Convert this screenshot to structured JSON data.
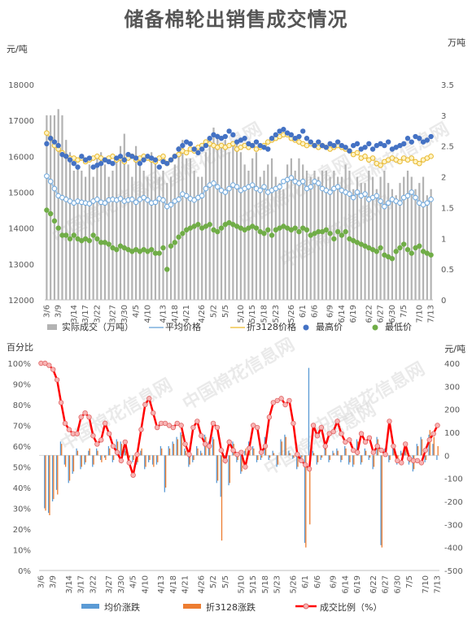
{
  "title": "储备棉轮出销售成交情况",
  "colors": {
    "vol": "#b3b3b3",
    "avg": "#9dc3e6",
    "conv": "#f4d47a",
    "max": "#4472c4",
    "min": "#70ad47",
    "pct_line": "#ff0000",
    "pct_marker": "#f8b4b4",
    "avg_chg": "#5b9bd5",
    "conv_chg": "#ed7d31"
  },
  "watermark": "中国棉花信息网",
  "chart_data": [
    {
      "type": "bar+scatter",
      "unit_left": "元/吨",
      "unit_right": "万吨",
      "ylim": [
        12000,
        18000
      ],
      "yticks": [
        12000,
        13000,
        14000,
        15000,
        16000,
        17000,
        18000
      ],
      "y2lim": [
        0,
        3.5
      ],
      "y2ticks": [
        "0",
        "0.5",
        "1",
        "1.5",
        "2",
        "2.5",
        "3",
        "3.5"
      ],
      "x_labels": [
        "3/6",
        "3/9",
        "3/14",
        "3/17",
        "3/22",
        "3/27",
        "3/30",
        "4/5",
        "4/10",
        "4/13",
        "4/18",
        "4/21",
        "4/26",
        "5/2",
        "5/5",
        "5/10",
        "5/15",
        "5/18",
        "5/23",
        "5/26",
        "6/1",
        "6/6",
        "6/9",
        "6/14",
        "6/19",
        "6/22",
        "6/27",
        "6/30",
        "7/5",
        "7/10",
        "7/13"
      ],
      "legend": [
        "实际成交（万吨）",
        "平均价格",
        "折3128价格",
        "最高价",
        "最低价"
      ],
      "volume": [
        3.0,
        3.0,
        3.0,
        3.1,
        3.0,
        2.6,
        2.4,
        2.1,
        2.2,
        2.1,
        2.0,
        2.2,
        2.0,
        2.3,
        2.4,
        2.2,
        2.0,
        2.1,
        2.3,
        2.5,
        2.7,
        2.2,
        2.0,
        2.5,
        2.3,
        2.1,
        2.0,
        2.4,
        2.3,
        2.0,
        2.1,
        1.9,
        2.0,
        2.2,
        2.5,
        2.6,
        2.3,
        2.3,
        2.1,
        2.0,
        2.0,
        2.4,
        2.6,
        2.8,
        2.7,
        2.5,
        2.6,
        2.4,
        2.5,
        2.6,
        2.4,
        2.2,
        2.1,
        2.3,
        2.4,
        2.0,
        2.1,
        2.2,
        2.3,
        2.0,
        1.9,
        1.8,
        2.2,
        2.3,
        2.1,
        2.3,
        2.2,
        2.1,
        2.0,
        2.1,
        2.0,
        2.1,
        2.1,
        2.0,
        2.1,
        2.0,
        2.0,
        2.2,
        2.1,
        1.8,
        2.0,
        1.9,
        1.9,
        2.1,
        2.0,
        1.8,
        2.0,
        2.1,
        1.9,
        1.8,
        1.7,
        1.9,
        2.0,
        2.1,
        2.0,
        1.8,
        1.9,
        2.0,
        1.7,
        1.8
      ],
      "avg_price": [
        15450,
        15300,
        15100,
        14900,
        14850,
        14800,
        14750,
        14700,
        14750,
        14720,
        14700,
        14680,
        14750,
        14800,
        14720,
        14700,
        14780,
        14800,
        14780,
        14820,
        14750,
        14780,
        14800,
        14720,
        14800,
        14850,
        14780,
        14700,
        14720,
        14820,
        14780,
        14600,
        14650,
        14750,
        14800,
        14950,
        14900,
        14820,
        14780,
        14850,
        14900,
        15100,
        15200,
        15250,
        15150,
        15050,
        15000,
        15100,
        15200,
        15150,
        15050,
        15100,
        15150,
        15200,
        15100,
        15050,
        15150,
        15000,
        15050,
        15100,
        15150,
        15300,
        15350,
        15400,
        15300,
        15250,
        15300,
        15100,
        15150,
        15300,
        15250,
        15100,
        15050,
        15000,
        15100,
        15150,
        15050,
        15000,
        14950,
        14850,
        15000,
        14900,
        14950,
        14800,
        14850,
        14900,
        14750,
        14600,
        14700,
        14800,
        14750,
        14700,
        14850,
        14900,
        15000,
        14850,
        14700,
        14650,
        14700,
        14800
      ],
      "conv_price": [
        16650,
        16500,
        16300,
        16200,
        16100,
        16000,
        15950,
        15950,
        15900,
        15950,
        15850,
        15900,
        15950,
        16000,
        15950,
        15900,
        15950,
        16000,
        15900,
        15950,
        15850,
        15950,
        16000,
        15900,
        15950,
        16000,
        15950,
        15900,
        15850,
        15950,
        16000,
        15800,
        15900,
        16000,
        16050,
        16150,
        16100,
        16200,
        16150,
        16250,
        16300,
        16400,
        16350,
        16300,
        16250,
        16300,
        16250,
        16300,
        16350,
        16200,
        16250,
        16300,
        16250,
        16300,
        16200,
        16250,
        16300,
        16400,
        16450,
        16500,
        16550,
        16600,
        16600,
        16500,
        16450,
        16400,
        16350,
        16300,
        16350,
        16300,
        16250,
        16300,
        16250,
        16200,
        16250,
        16300,
        16250,
        16200,
        16150,
        16050,
        16100,
        15950,
        16000,
        15900,
        15950,
        15800,
        15750,
        15850,
        15900,
        15950,
        15900,
        15850,
        15950,
        15900,
        15950,
        15850,
        15800,
        15900,
        15950,
        16000
      ],
      "max_price": [
        16350,
        16500,
        16400,
        16300,
        16050,
        16000,
        15900,
        15800,
        15700,
        16000,
        15900,
        15950,
        15700,
        15750,
        15800,
        15900,
        15850,
        15800,
        15950,
        16000,
        15900,
        16050,
        16000,
        15950,
        15800,
        15900,
        16000,
        15950,
        15900,
        15700,
        15850,
        15800,
        15900,
        16000,
        16200,
        16300,
        16400,
        16350,
        16200,
        16100,
        16200,
        16300,
        16500,
        16600,
        16550,
        16500,
        16550,
        16700,
        16600,
        16400,
        16450,
        16500,
        16350,
        16300,
        16400,
        16300,
        16250,
        16200,
        16500,
        16600,
        16700,
        16750,
        16650,
        16600,
        16500,
        16550,
        16700,
        16500,
        16400,
        16300,
        16400,
        16300,
        16250,
        16350,
        16300,
        16400,
        16300,
        16250,
        16150,
        16300,
        16350,
        16200,
        16250,
        16350,
        16200,
        16300,
        16350,
        16300,
        16400,
        16200,
        16250,
        16300,
        16350,
        16500,
        16400,
        16550,
        16500,
        16400,
        16450,
        16550
      ],
      "min_price": [
        14500,
        14400,
        14200,
        14000,
        13800,
        13800,
        13700,
        13800,
        13700,
        13650,
        13700,
        13650,
        13800,
        13700,
        13600,
        13600,
        13550,
        13450,
        13400,
        13500,
        13450,
        13400,
        13350,
        13400,
        13350,
        13400,
        13350,
        13400,
        13300,
        13300,
        13450,
        12850,
        13500,
        13600,
        13750,
        13850,
        13950,
        14000,
        14050,
        14100,
        14000,
        14050,
        14100,
        13950,
        13900,
        14000,
        14100,
        14150,
        14100,
        14050,
        14000,
        13950,
        14000,
        14050,
        14000,
        13900,
        13850,
        13950,
        13800,
        13950,
        14000,
        14050,
        14000,
        13950,
        14000,
        13900,
        14000,
        13950,
        13800,
        13850,
        13900,
        13900,
        13950,
        13850,
        13700,
        13900,
        13800,
        13900,
        13700,
        13650,
        13600,
        13550,
        13500,
        13450,
        13400,
        13350,
        13450,
        13250,
        13200,
        13150,
        13350,
        13450,
        13550,
        13400,
        13300,
        13450,
        13500,
        13350,
        13300,
        13250
      ]
    },
    {
      "type": "bar+line",
      "unit_left": "百分比",
      "unit_right": "元/吨",
      "ylim": [
        0,
        100
      ],
      "yticks": [
        "0%",
        "10%",
        "20%",
        "30%",
        "40%",
        "50%",
        "60%",
        "70%",
        "80%",
        "90%",
        "100%"
      ],
      "y2lim": [
        -500,
        400
      ],
      "y2ticks": [
        "-500",
        "-400",
        "-300",
        "-200",
        "-100",
        "0",
        "100",
        "200",
        "300",
        "400"
      ],
      "x_labels": [
        "3/6",
        "3/9",
        "3/14",
        "3/17",
        "3/22",
        "3/27",
        "3/30",
        "4/5",
        "4/10",
        "4/13",
        "4/18",
        "4/21",
        "4/26",
        "5/2",
        "5/5",
        "5/10",
        "5/15",
        "5/18",
        "5/23",
        "5/26",
        "6/1",
        "6/6",
        "6/9",
        "6/14",
        "6/19",
        "6/22",
        "6/27",
        "6/30",
        "7/5",
        "7/10",
        "7/13"
      ],
      "legend": [
        "均价涨跌",
        "折3128涨跌",
        "成交比例（%）"
      ],
      "avg_change": [
        0,
        -230,
        -250,
        -200,
        -150,
        60,
        -40,
        -120,
        -80,
        30,
        -60,
        -40,
        20,
        -50,
        30,
        -20,
        -10,
        40,
        -30,
        70,
        60,
        30,
        -20,
        -30,
        -40,
        20,
        -60,
        -30,
        -40,
        -40,
        40,
        -160,
        40,
        60,
        80,
        100,
        30,
        -50,
        -30,
        40,
        20,
        90,
        60,
        80,
        -120,
        -180,
        -30,
        -130,
        60,
        -30,
        -80,
        20,
        60,
        40,
        -30,
        -20,
        80,
        -20,
        20,
        -50,
        70,
        90,
        20,
        -15,
        -60,
        -20,
        -380,
        380,
        20,
        -40,
        -20,
        50,
        -30,
        20,
        30,
        -30,
        40,
        -40,
        -50,
        70,
        -40,
        30,
        -20,
        -60,
        80,
        -390,
        30,
        -30,
        60,
        -40,
        20,
        40,
        -40,
        -70,
        50,
        80,
        -30,
        90,
        50,
        -20
      ],
      "conv_change": [
        0,
        -240,
        -260,
        -190,
        -170,
        50,
        -50,
        -110,
        -70,
        20,
        -50,
        -30,
        30,
        -40,
        20,
        -30,
        -20,
        30,
        -20,
        60,
        50,
        20,
        -10,
        -20,
        -30,
        30,
        -50,
        -20,
        -50,
        -30,
        30,
        -140,
        30,
        50,
        70,
        90,
        20,
        -40,
        -20,
        30,
        10,
        80,
        50,
        70,
        -110,
        -370,
        -20,
        -120,
        50,
        -20,
        -70,
        30,
        50,
        30,
        -20,
        -10,
        70,
        -10,
        10,
        -40,
        60,
        80,
        10,
        -10,
        -50,
        -10,
        -400,
        -300,
        10,
        -30,
        -10,
        40,
        -20,
        10,
        20,
        -20,
        30,
        -30,
        -40,
        60,
        -30,
        20,
        -10,
        -50,
        70,
        -400,
        20,
        -20,
        50,
        -30,
        10,
        30,
        -30,
        -60,
        40,
        70,
        -20,
        110,
        80,
        40
      ],
      "deal_ratio": [
        100,
        100,
        99,
        97,
        92,
        81,
        71,
        68,
        66,
        66,
        74,
        76,
        74,
        65,
        61,
        63,
        71,
        66,
        60,
        57,
        53,
        62,
        52,
        46,
        56,
        68,
        80,
        83,
        76,
        69,
        71,
        71,
        70,
        69,
        71,
        70,
        61,
        56,
        69,
        72,
        65,
        61,
        60,
        71,
        69,
        58,
        53,
        62,
        58,
        56,
        57,
        50,
        59,
        70,
        69,
        57,
        60,
        74,
        81,
        82,
        83,
        80,
        82,
        71,
        56,
        53,
        51,
        49,
        70,
        65,
        69,
        60,
        66,
        67,
        72,
        66,
        62,
        63,
        58,
        57,
        66,
        62,
        64,
        57,
        60,
        58,
        56,
        72,
        60,
        53,
        52,
        61,
        54,
        53,
        53,
        52,
        58,
        63,
        66,
        70
      ]
    }
  ]
}
